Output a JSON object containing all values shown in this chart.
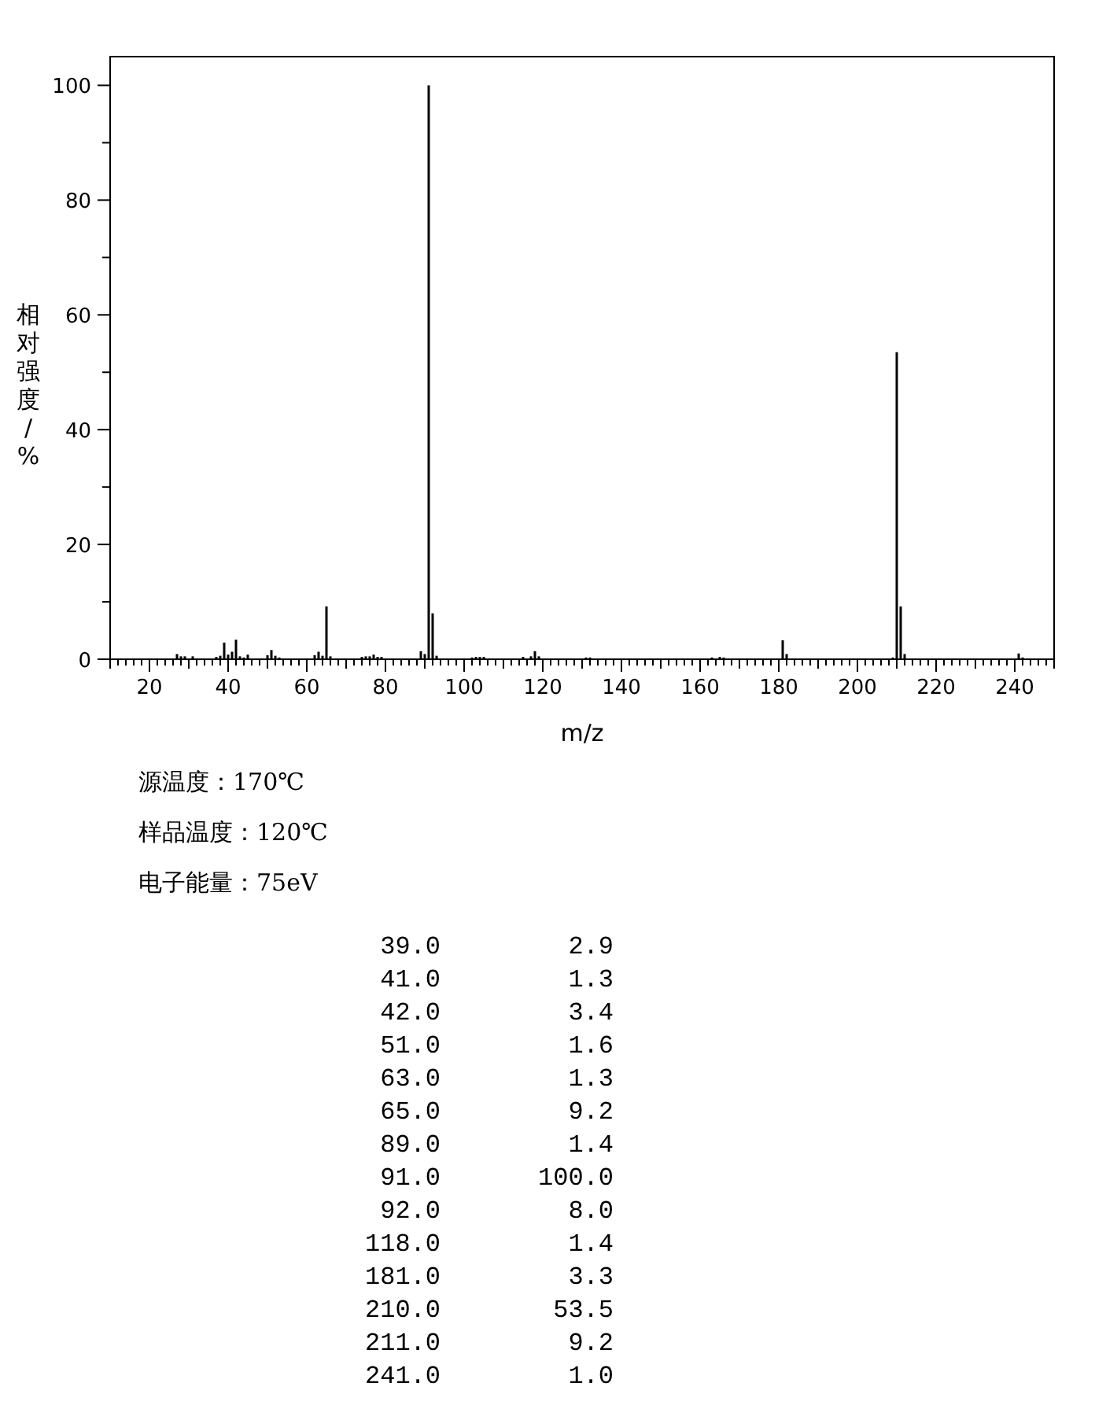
{
  "chart_data": [
    {
      "type": "bar",
      "xlabel": "m/z",
      "ylabel": "相对强度/%",
      "xlim": [
        10,
        250
      ],
      "ylim": [
        0,
        105
      ],
      "xticks": [
        {
          "value": 10,
          "label": null
        },
        {
          "value": 12,
          "label": null
        },
        {
          "value": 14,
          "label": null
        },
        {
          "value": 16,
          "label": null
        },
        {
          "value": 18,
          "label": null
        },
        20,
        {
          "value": 22,
          "label": null
        },
        {
          "value": 24,
          "label": null
        },
        {
          "value": 26,
          "label": null
        },
        {
          "value": 28,
          "label": null
        },
        {
          "value": 30,
          "label": null
        },
        {
          "value": 32,
          "label": null
        },
        {
          "value": 34,
          "label": null
        },
        {
          "value": 36,
          "label": null
        },
        {
          "value": 38,
          "label": null
        },
        40,
        {
          "value": 42,
          "label": null
        },
        {
          "value": 44,
          "label": null
        },
        {
          "value": 46,
          "label": null
        },
        {
          "value": 48,
          "label": null
        },
        {
          "value": 50,
          "label": null
        },
        {
          "value": 52,
          "label": null
        },
        {
          "value": 54,
          "label": null
        },
        {
          "value": 56,
          "label": null
        },
        {
          "value": 58,
          "label": null
        },
        60,
        {
          "value": 62,
          "label": null
        },
        {
          "value": 64,
          "label": null
        },
        {
          "value": 66,
          "label": null
        },
        {
          "value": 68,
          "label": null
        },
        {
          "value": 70,
          "label": null
        },
        {
          "value": 72,
          "label": null
        },
        {
          "value": 74,
          "label": null
        },
        {
          "value": 76,
          "label": null
        },
        {
          "value": 78,
          "label": null
        },
        80,
        {
          "value": 82,
          "label": null
        },
        {
          "value": 84,
          "label": null
        },
        {
          "value": 86,
          "label": null
        },
        {
          "value": 88,
          "label": null
        },
        {
          "value": 90,
          "label": null
        },
        {
          "value": 92,
          "label": null
        },
        {
          "value": 94,
          "label": null
        },
        {
          "value": 96,
          "label": null
        },
        {
          "value": 98,
          "label": null
        },
        100,
        {
          "value": 102,
          "label": null
        },
        {
          "value": 104,
          "label": null
        },
        {
          "value": 106,
          "label": null
        },
        {
          "value": 108,
          "label": null
        },
        {
          "value": 110,
          "label": null
        },
        {
          "value": 112,
          "label": null
        },
        {
          "value": 114,
          "label": null
        },
        {
          "value": 116,
          "label": null
        },
        {
          "value": 118,
          "label": null
        },
        120,
        {
          "value": 122,
          "label": null
        },
        {
          "value": 124,
          "label": null
        },
        {
          "value": 126,
          "label": null
        },
        {
          "value": 128,
          "label": null
        },
        {
          "value": 130,
          "label": null
        },
        {
          "value": 132,
          "label": null
        },
        {
          "value": 134,
          "label": null
        },
        {
          "value": 136,
          "label": null
        },
        {
          "value": 138,
          "label": null
        },
        140,
        {
          "value": 142,
          "label": null
        },
        {
          "value": 144,
          "label": null
        },
        {
          "value": 146,
          "label": null
        },
        {
          "value": 148,
          "label": null
        },
        {
          "value": 150,
          "label": null
        },
        {
          "value": 152,
          "label": null
        },
        {
          "value": 154,
          "label": null
        },
        {
          "value": 156,
          "label": null
        },
        {
          "value": 158,
          "label": null
        },
        160,
        {
          "value": 162,
          "label": null
        },
        {
          "value": 164,
          "label": null
        },
        {
          "value": 166,
          "label": null
        },
        {
          "value": 168,
          "label": null
        },
        {
          "value": 170,
          "label": null
        },
        {
          "value": 172,
          "label": null
        },
        {
          "value": 174,
          "label": null
        },
        {
          "value": 176,
          "label": null
        },
        {
          "value": 178,
          "label": null
        },
        180,
        {
          "value": 182,
          "label": null
        },
        {
          "value": 184,
          "label": null
        },
        {
          "value": 186,
          "label": null
        },
        {
          "value": 188,
          "label": null
        },
        {
          "value": 190,
          "label": null
        },
        {
          "value": 192,
          "label": null
        },
        {
          "value": 194,
          "label": null
        },
        {
          "value": 196,
          "label": null
        },
        {
          "value": 198,
          "label": null
        },
        200,
        {
          "value": 202,
          "label": null
        },
        {
          "value": 204,
          "label": null
        },
        {
          "value": 206,
          "label": null
        },
        {
          "value": 208,
          "label": null
        },
        {
          "value": 210,
          "label": null
        },
        {
          "value": 212,
          "label": null
        },
        {
          "value": 214,
          "label": null
        },
        {
          "value": 216,
          "label": null
        },
        {
          "value": 218,
          "label": null
        },
        220,
        {
          "value": 222,
          "label": null
        },
        {
          "value": 224,
          "label": null
        },
        {
          "value": 226,
          "label": null
        },
        {
          "value": 228,
          "label": null
        },
        {
          "value": 230,
          "label": null
        },
        {
          "value": 232,
          "label": null
        },
        {
          "value": 234,
          "label": null
        },
        {
          "value": 236,
          "label": null
        },
        {
          "value": 238,
          "label": null
        },
        240,
        {
          "value": 242,
          "label": null
        },
        {
          "value": 244,
          "label": null
        },
        {
          "value": 246,
          "label": null
        },
        {
          "value": 248,
          "label": null
        },
        {
          "value": 250,
          "label": null
        }
      ],
      "yticks": [
        0,
        {
          "value": 10,
          "label": null
        },
        20,
        {
          "value": 30,
          "label": null
        },
        40,
        {
          "value": 50,
          "label": null
        },
        60,
        {
          "value": 70,
          "label": null
        },
        80,
        {
          "value": 90,
          "label": null
        },
        100
      ],
      "series": [
        {
          "color": "#000000",
          "x": [
            27,
            28,
            29,
            31,
            37,
            38,
            39,
            40,
            41,
            42,
            43,
            44,
            45,
            50,
            51,
            52,
            53,
            62,
            63,
            64,
            65,
            66,
            74,
            75,
            76,
            77,
            78,
            79,
            89,
            90,
            91,
            92,
            93,
            102,
            103,
            104,
            105,
            115,
            117,
            118,
            119,
            131,
            132,
            163,
            165,
            166,
            181,
            182,
            209,
            210,
            211,
            212,
            241,
            242
          ],
          "values": [
            0.9,
            0.5,
            0.5,
            0.5,
            0.4,
            0.6,
            2.9,
            0.8,
            1.3,
            3.4,
            0.5,
            0.3,
            0.8,
            0.7,
            1.6,
            0.6,
            0.3,
            0.7,
            1.3,
            0.6,
            9.2,
            0.5,
            0.4,
            0.5,
            0.5,
            0.8,
            0.4,
            0.4,
            1.4,
            0.9,
            100,
            8.0,
            0.6,
            0.3,
            0.4,
            0.4,
            0.4,
            0.4,
            0.5,
            1.4,
            0.5,
            0.3,
            0.3,
            0.3,
            0.4,
            0.3,
            3.3,
            0.9,
            0.3,
            53.5,
            9.2,
            0.9,
            1.0,
            0.3
          ]
        }
      ],
      "annotations": [
        "源温度：170℃",
        "样品温度：120℃",
        "电子能量：75eV"
      ]
    },
    {
      "type": "other",
      "categories": [
        "39.0",
        "41.0",
        "42.0",
        "51.0",
        "63.0",
        "65.0",
        "89.0",
        "91.0",
        "92.0",
        "118.0",
        "181.0",
        "210.0",
        "211.0",
        "241.0"
      ],
      "value_labels": [
        "2.9",
        "1.3",
        "3.4",
        "1.6",
        "1.3",
        "9.2",
        "1.4",
        "100.0",
        "8.0",
        "1.4",
        "3.3",
        "53.5",
        "9.2",
        "1.0"
      ]
    }
  ]
}
